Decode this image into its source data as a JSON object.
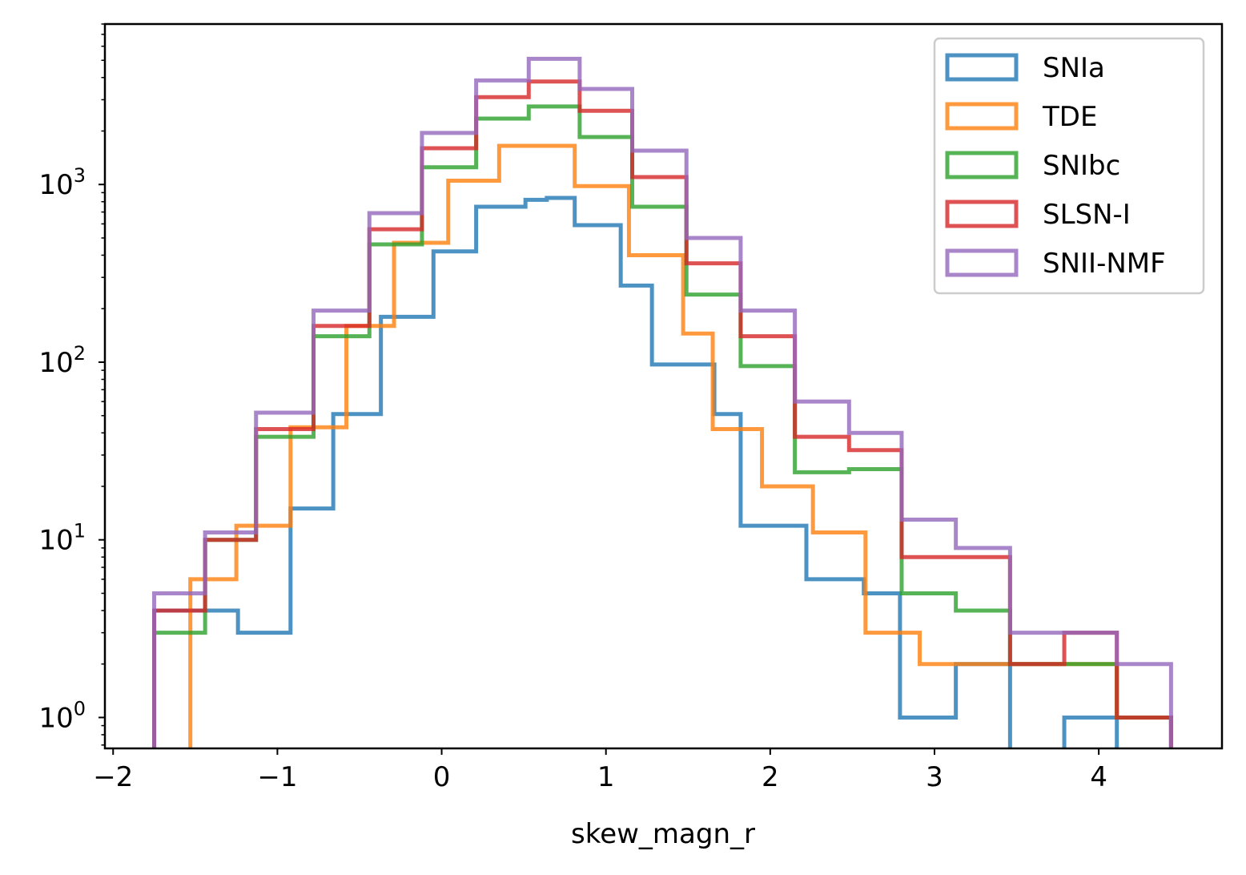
{
  "chart_data": {
    "type": "histogram",
    "xlabel": "skew_magn_r",
    "ylabel": "",
    "yscale": "log",
    "xlim": [
      -2.05,
      4.75
    ],
    "ylim": [
      0.67,
      8000
    ],
    "xticks": [
      -2,
      -1,
      0,
      1,
      2,
      3,
      4
    ],
    "xtick_labels": [
      "−2",
      "−1",
      "0",
      "1",
      "2",
      "3",
      "4"
    ],
    "yticks": [
      {
        "value": 1,
        "base": "10",
        "exp": "0"
      },
      {
        "value": 10,
        "base": "10",
        "exp": "1"
      },
      {
        "value": 100,
        "base": "10",
        "exp": "2"
      },
      {
        "value": 1000,
        "base": "10",
        "exp": "3"
      }
    ],
    "legend_position": "top-right",
    "grid": false,
    "series": [
      {
        "name": "SNIa",
        "color": "#1f77b4",
        "edges": [
          -1.75,
          -1.44,
          -1.24,
          -1.0,
          -0.92,
          -0.66,
          -0.37,
          -0.05,
          0.21,
          0.51,
          0.64,
          0.81,
          1.09,
          1.28,
          1.66,
          1.82,
          2.22,
          2.57,
          2.79,
          3.13,
          3.46,
          3.79,
          4.11,
          4.44
        ],
        "counts": [
          4,
          4,
          3,
          3,
          15,
          51,
          180,
          420,
          750,
          820,
          840,
          590,
          270,
          97,
          51,
          12,
          6,
          5,
          1,
          2,
          0,
          1,
          0
        ]
      },
      {
        "name": "TDE",
        "color": "#ff7f0e",
        "edges": [
          -1.53,
          -1.25,
          -1.13,
          -0.92,
          -0.58,
          -0.29,
          0.04,
          0.35,
          0.54,
          0.81,
          1.14,
          1.47,
          1.65,
          1.95,
          2.26,
          2.58,
          2.91,
          3.47,
          3.79,
          4.11,
          4.44
        ],
        "counts": [
          6,
          12,
          12,
          43,
          160,
          470,
          1050,
          1650,
          1650,
          980,
          400,
          145,
          42,
          20,
          11,
          3,
          2,
          2,
          2,
          1
        ]
      },
      {
        "name": "SNIbc",
        "color": "#2ca02c",
        "edges": [
          -1.75,
          -1.44,
          -1.13,
          -0.78,
          -0.44,
          -0.12,
          0.21,
          0.53,
          0.84,
          1.16,
          1.49,
          1.82,
          2.15,
          2.48,
          2.8,
          3.13,
          3.46,
          3.79,
          4.11,
          4.44
        ],
        "counts": [
          3,
          10,
          38,
          140,
          460,
          1250,
          2350,
          2750,
          1850,
          750,
          240,
          95,
          24,
          25,
          5,
          4,
          2,
          2,
          1
        ]
      },
      {
        "name": "SLSN-I",
        "color": "#d62728",
        "edges": [
          -1.75,
          -1.44,
          -1.13,
          -0.78,
          -0.44,
          -0.12,
          0.21,
          0.53,
          0.84,
          1.16,
          1.49,
          1.82,
          2.15,
          2.48,
          2.8,
          3.13,
          3.46,
          3.79,
          4.11,
          4.44
        ],
        "counts": [
          4,
          10,
          42,
          160,
          560,
          1600,
          3100,
          3800,
          2600,
          1100,
          360,
          140,
          38,
          32,
          8,
          8,
          2,
          3,
          1
        ]
      },
      {
        "name": "SNII-NMF",
        "color": "#9467bd",
        "edges": [
          -1.75,
          -1.44,
          -1.13,
          -0.78,
          -0.44,
          -0.12,
          0.21,
          0.53,
          0.84,
          1.16,
          1.49,
          1.82,
          2.15,
          2.48,
          2.8,
          3.13,
          3.46,
          3.79,
          4.11,
          4.44
        ],
        "counts": [
          5,
          11,
          52,
          195,
          690,
          1950,
          3850,
          5100,
          3450,
          1550,
          500,
          195,
          60,
          40,
          13,
          9,
          3,
          3,
          2
        ]
      }
    ]
  }
}
